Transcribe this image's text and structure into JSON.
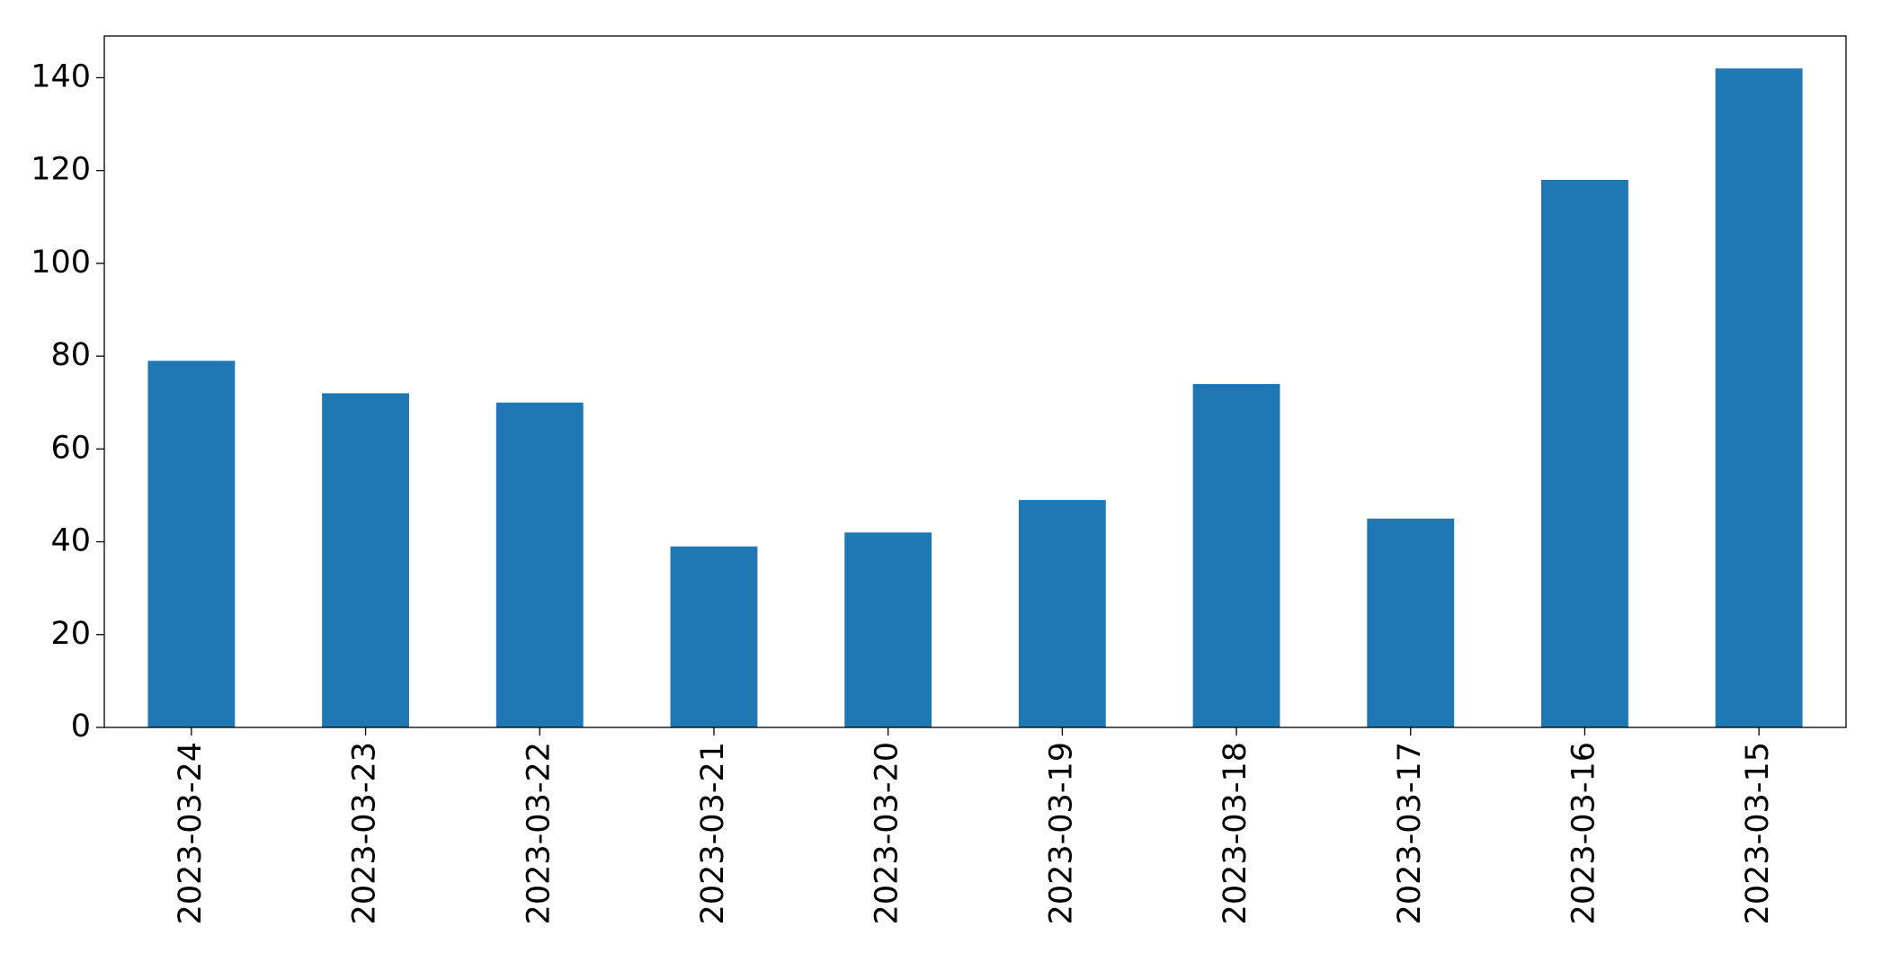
{
  "chart_data": {
    "type": "bar",
    "categories": [
      "2023-03-24",
      "2023-03-23",
      "2023-03-22",
      "2023-03-21",
      "2023-03-20",
      "2023-03-19",
      "2023-03-18",
      "2023-03-17",
      "2023-03-16",
      "2023-03-15"
    ],
    "values": [
      79,
      72,
      70,
      39,
      42,
      49,
      74,
      45,
      118,
      142
    ],
    "color": "#1f77b4",
    "ylim": [
      0,
      149
    ],
    "yticks": [
      0,
      20,
      40,
      60,
      80,
      100,
      120,
      140
    ],
    "grid": false
  }
}
